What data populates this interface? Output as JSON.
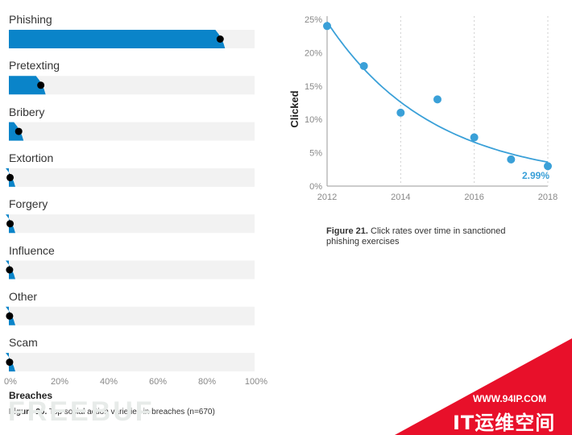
{
  "figure20": {
    "caption_label": "Figure 20.",
    "caption_text": " Top social action varieties in breaches (n=670)",
    "axis_title": "Breaches",
    "xticks": [
      "0%",
      "20%",
      "40%",
      "60%",
      "80%",
      "100%"
    ],
    "colors": {
      "bar": "#0a84c9",
      "track": "#f2f2f2",
      "dot": "#000000"
    }
  },
  "figure21": {
    "caption_label": "Figure 21.",
    "caption_text": " Click rates over time in sanctioned phishing exercises",
    "ylabel": "Clicked",
    "yticks": [
      "0%",
      "5%",
      "10%",
      "15%",
      "20%",
      "25%"
    ],
    "xticks": [
      "2012",
      "2014",
      "2016",
      "2018"
    ],
    "end_annotation": "2.99%",
    "colors": {
      "series": "#3aa0d8",
      "axis": "#888888"
    }
  },
  "chart_data": [
    {
      "type": "bar",
      "orientation": "horizontal",
      "categories": [
        "Phishing",
        "Pretexting",
        "Bribery",
        "Extortion",
        "Forgery",
        "Influence",
        "Other",
        "Scam"
      ],
      "values": [
        86,
        13,
        4,
        0.5,
        0.5,
        0.3,
        0.3,
        0.3
      ],
      "xlabel": "Breaches",
      "xlim": [
        0,
        100
      ]
    },
    {
      "type": "scatter",
      "ylabel": "Clicked",
      "x": [
        2012,
        2013,
        2014,
        2015,
        2016,
        2017,
        2018
      ],
      "y": [
        24,
        18,
        11,
        13,
        7.3,
        4,
        2.99
      ],
      "xlim": [
        2012,
        2018
      ],
      "ylim": [
        0,
        25
      ],
      "trendline": "fitted curve",
      "annotation": "2.99%"
    }
  ],
  "watermark": "FREEBUF",
  "banner": {
    "url": "WWW.94IP.COM",
    "text": "IT运维空间",
    "color": "#e8102a"
  }
}
